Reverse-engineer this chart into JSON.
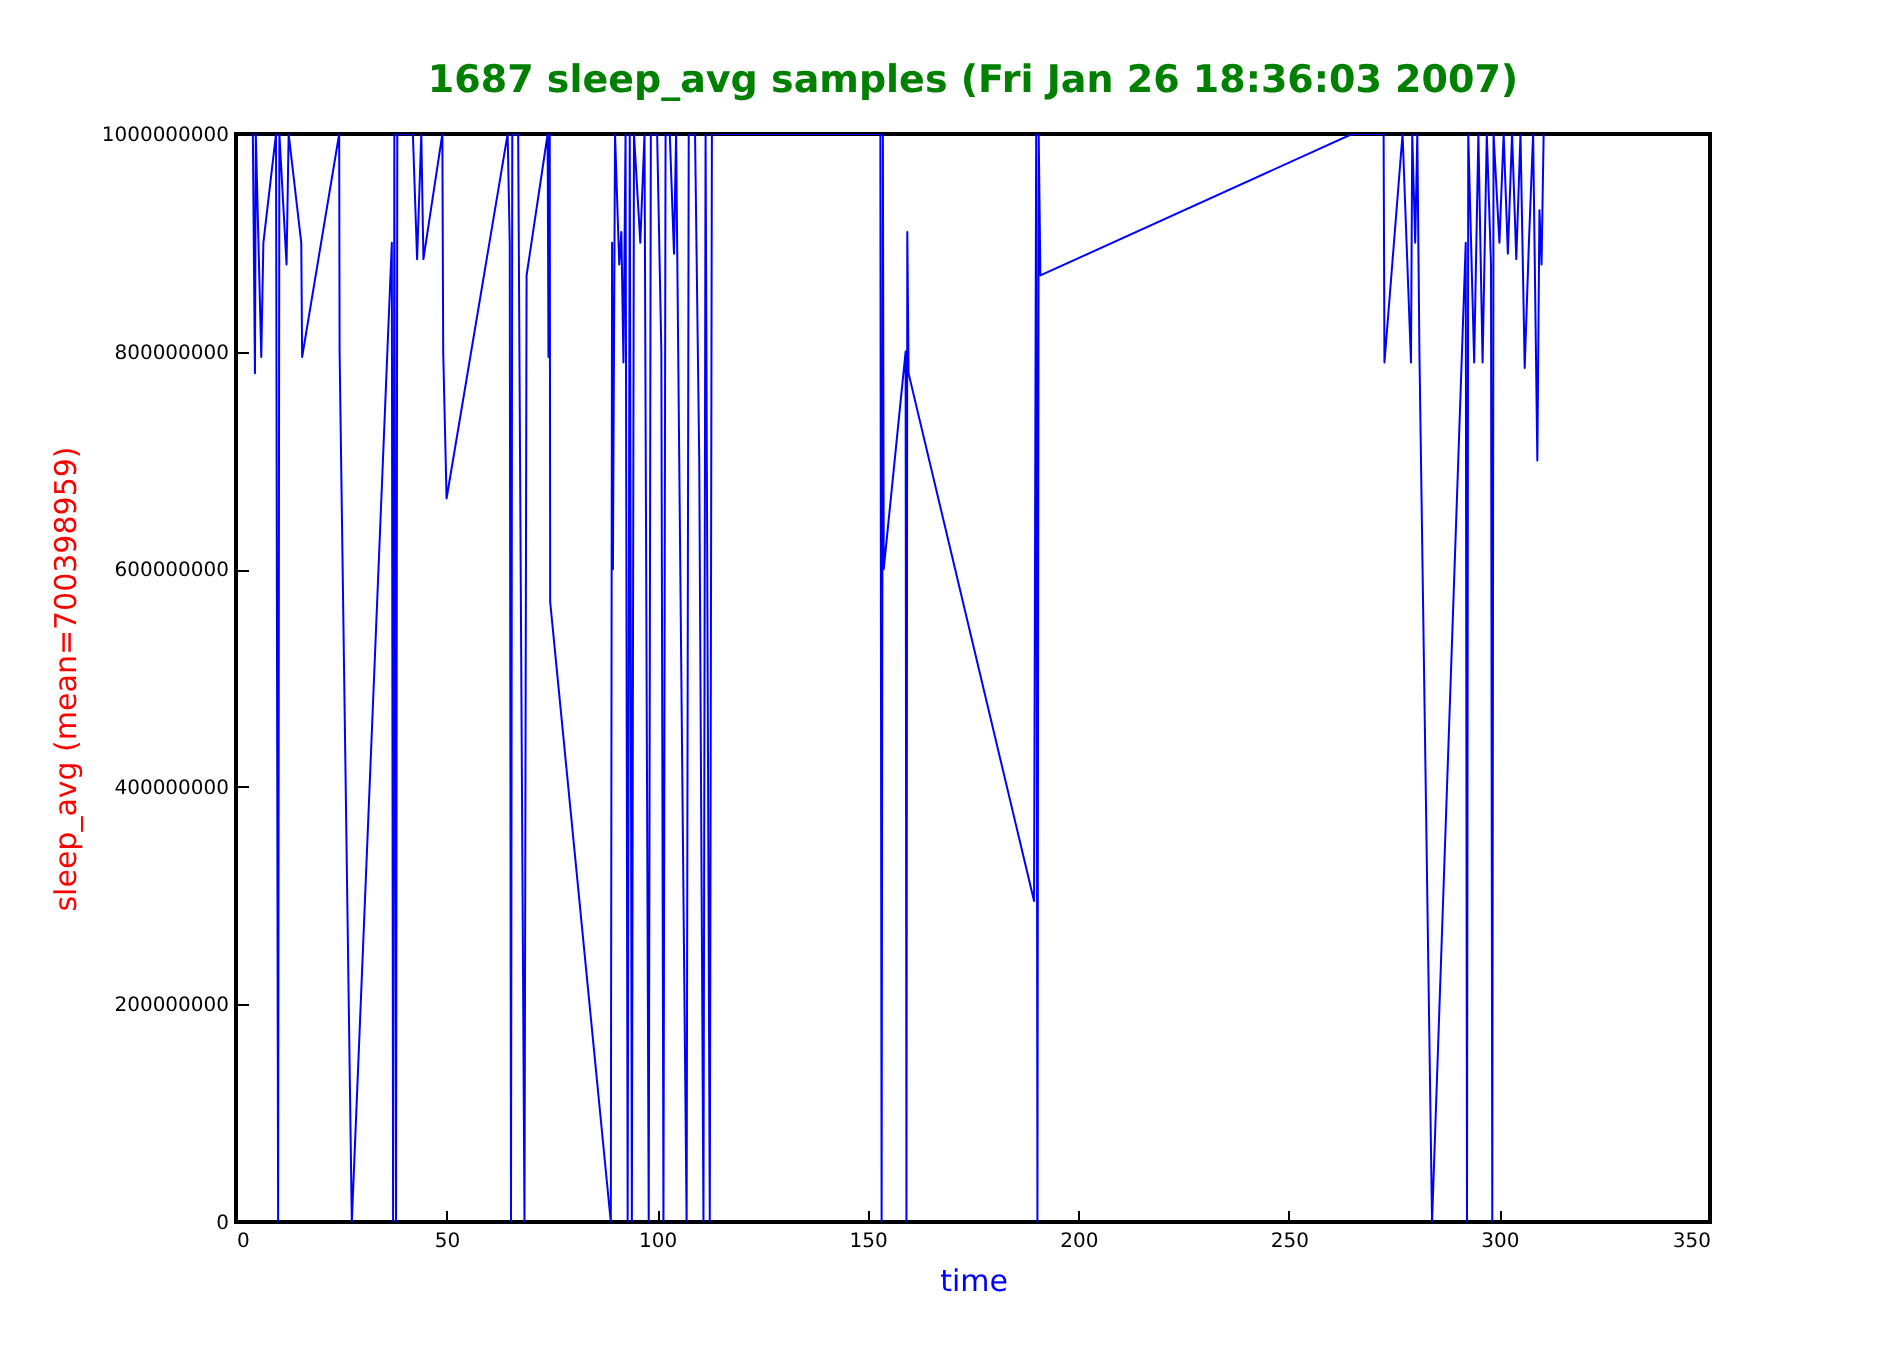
{
  "chart_data": {
    "type": "line",
    "title": "1687 sleep_avg samples (Fri Jan 26 18:36:03 2007)",
    "xlabel": "time",
    "ylabel": "sleep_avg (mean=700398959)",
    "xlim": [
      0,
      350
    ],
    "xticks": [
      0,
      50,
      100,
      150,
      200,
      250,
      300,
      350
    ],
    "ylim": [
      0,
      1000000000
    ],
    "yticks": [
      0,
      200000000,
      400000000,
      600000000,
      800000000,
      1000000000
    ],
    "grid": false,
    "series": [
      {
        "color": "#0000ff",
        "x": [
          4,
          4.5,
          4.7,
          6,
          6.5,
          9.5,
          10,
          10.3,
          12,
          12.5,
          15.5,
          15.7,
          24.5,
          24.6,
          27.5,
          37,
          37.3,
          37.6,
          38,
          38.3,
          42,
          43,
          44,
          44.5,
          49,
          49.2,
          50,
          64.5,
          65,
          65.3,
          65.6,
          67,
          68.5,
          69,
          74,
          74.2,
          74.5,
          74.6,
          89,
          89.3,
          89.5,
          90,
          91,
          91.5,
          92,
          92.5,
          93,
          93.5,
          94,
          94.5,
          96,
          97,
          98,
          98.5,
          100,
          101,
          101.5,
          102,
          103,
          104,
          104.5,
          107,
          107.5,
          109,
          110,
          111,
          111.5,
          112.5,
          113,
          153,
          153.3,
          153.6,
          153.8,
          159,
          159.2,
          159.4,
          159.7,
          189.5,
          190,
          190.3,
          190.6,
          191,
          265,
          272.5,
          272.7,
          277,
          279,
          279.3,
          280,
          280.5,
          281,
          284,
          292,
          292.3,
          292.6,
          294,
          295,
          296,
          297,
          298,
          298.3,
          298.6,
          300,
          301,
          302,
          303,
          304,
          305,
          306,
          307,
          308,
          309,
          309.5,
          310,
          310.5
        ],
        "values": [
          1000000000,
          780000000,
          1000000000,
          795000000,
          900000000,
          1000000000,
          0,
          1000000000,
          880000000,
          1000000000,
          900000000,
          795000000,
          1000000000,
          800000000,
          0,
          900000000,
          0,
          1000000000,
          0,
          1000000000,
          1000000000,
          885000000,
          1000000000,
          885000000,
          1000000000,
          800000000,
          665000000,
          1000000000,
          900000000,
          0,
          1000000000,
          1000000000,
          0,
          870000000,
          1000000000,
          795000000,
          1000000000,
          570000000,
          0,
          900000000,
          600000000,
          1000000000,
          880000000,
          910000000,
          790000000,
          1000000000,
          0,
          1000000000,
          0,
          1000000000,
          900000000,
          1000000000,
          0,
          1000000000,
          1000000000,
          800000000,
          0,
          1000000000,
          1000000000,
          890000000,
          1000000000,
          0,
          1000000000,
          1000000000,
          700000000,
          0,
          1000000000,
          0,
          1000000000,
          1000000000,
          0,
          1000000000,
          600000000,
          800000000,
          0,
          910000000,
          780000000,
          295000000,
          1000000000,
          0,
          1000000000,
          870000000,
          1000000000,
          1000000000,
          790000000,
          1000000000,
          790000000,
          1000000000,
          900000000,
          1000000000,
          800000000,
          0,
          900000000,
          0,
          1000000000,
          790000000,
          1000000000,
          790000000,
          1000000000,
          880000000,
          0,
          1000000000,
          900000000,
          1000000000,
          890000000,
          1000000000,
          885000000,
          1000000000,
          785000000,
          900000000,
          1000000000,
          700000000,
          930000000,
          880000000,
          1000000000
        ]
      }
    ]
  }
}
